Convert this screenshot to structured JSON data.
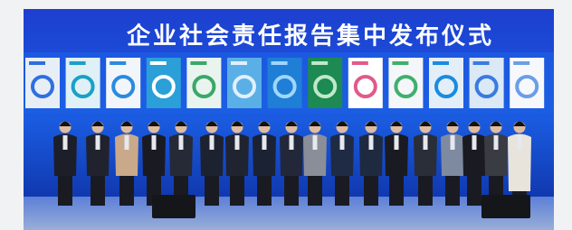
{
  "banner": {
    "title": "企业社会责任报告集中发布仪式"
  }
}
